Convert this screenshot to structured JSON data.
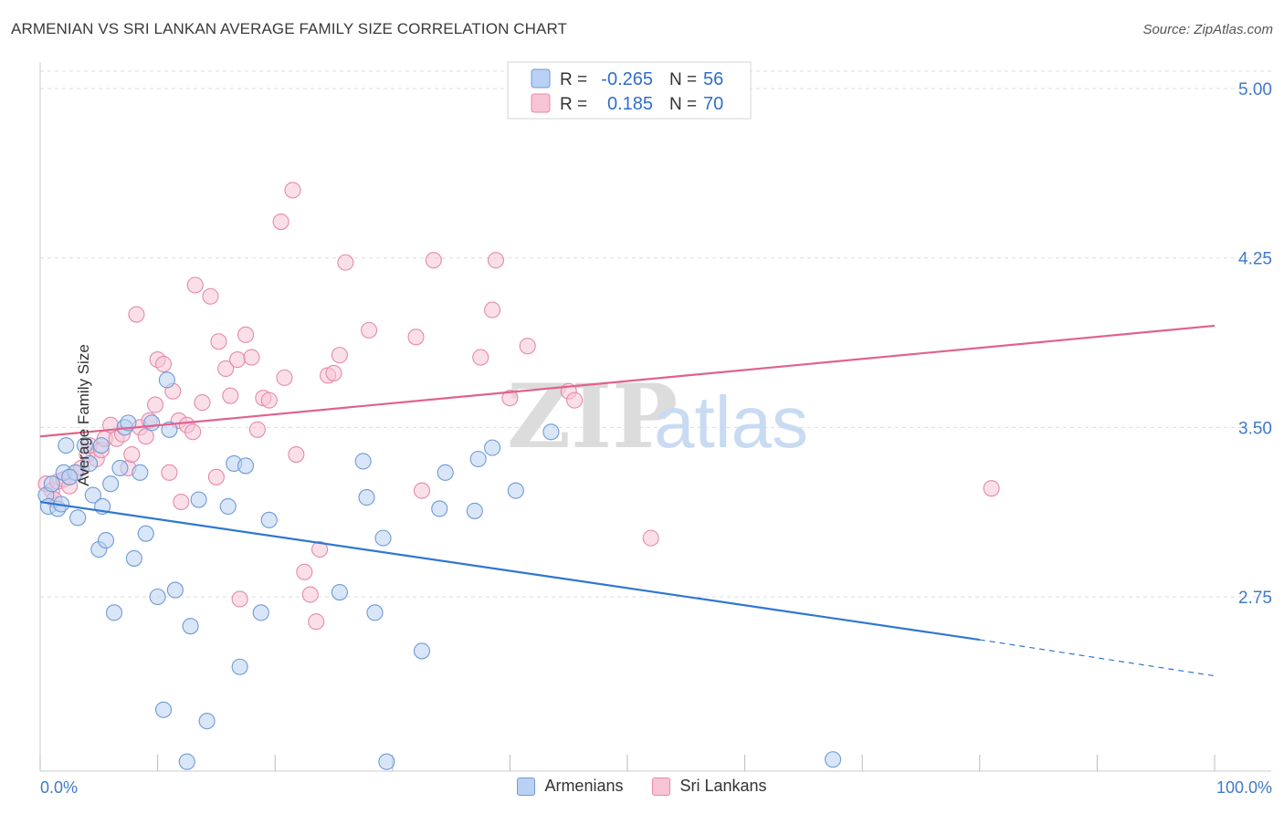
{
  "title": "ARMENIAN VS SRI LANKAN AVERAGE FAMILY SIZE CORRELATION CHART",
  "source": "Source: ZipAtlas.com",
  "watermark": "ZIPatlas",
  "colors": {
    "blue_fill": "#b9d1f3",
    "blue_stroke": "#6f9ad6",
    "blue_line": "#2f77d0",
    "pink_fill": "#f7c4d5",
    "pink_stroke": "#e58aa8",
    "pink_line": "#e0628c",
    "tick_label": "#3f7ac9",
    "grid": "#dddddd"
  },
  "legend": {
    "rows": [
      {
        "r_label": "R =",
        "r_value": "-0.265",
        "n_label": "N =",
        "n_value": "56"
      },
      {
        "r_label": "R =",
        "r_value": "0.185",
        "n_label": "N =",
        "n_value": "70"
      }
    ]
  },
  "bottom_legend": {
    "armenians": "Armenians",
    "sri_lankans": "Sri Lankans"
  },
  "chart_data": {
    "type": "scatter",
    "title": "ARMENIAN VS SRI LANKAN AVERAGE FAMILY SIZE CORRELATION CHART",
    "xlabel": "",
    "ylabel": "Average Family Size",
    "xlim": [
      0,
      100
    ],
    "ylim": [
      2.0,
      5.1
    ],
    "x_tick_labels": [
      "0.0%",
      "100.0%"
    ],
    "y_ticks": [
      2.75,
      3.5,
      4.25,
      5.0
    ],
    "y_tick_labels": [
      "2.75",
      "3.50",
      "4.25",
      "5.00"
    ],
    "grid": true,
    "legend_placement": "top-center",
    "series": [
      {
        "name": "Armenians",
        "color": "#6f9ad6",
        "R": -0.265,
        "N": 56,
        "trend": {
          "x0": 0,
          "y0": 3.17,
          "x1": 80,
          "y1": 2.56,
          "dashed_to_x": 100,
          "dashed_to_y": 2.4
        },
        "points": [
          [
            0.5,
            3.2
          ],
          [
            1,
            3.25
          ],
          [
            0.7,
            3.15
          ],
          [
            1.5,
            3.14
          ],
          [
            2,
            3.3
          ],
          [
            2.2,
            3.42
          ],
          [
            1.8,
            3.16
          ],
          [
            3,
            3.3
          ],
          [
            3.2,
            3.1
          ],
          [
            3.8,
            3.42
          ],
          [
            4.2,
            3.34
          ],
          [
            4.5,
            3.2
          ],
          [
            5,
            2.96
          ],
          [
            5.3,
            3.15
          ],
          [
            5.6,
            3
          ],
          [
            6,
            3.25
          ],
          [
            6.3,
            2.68
          ],
          [
            6.8,
            3.32
          ],
          [
            7.2,
            3.5
          ],
          [
            7.5,
            3.52
          ],
          [
            8,
            2.92
          ],
          [
            8.5,
            3.3
          ],
          [
            9,
            3.03
          ],
          [
            9.5,
            3.52
          ],
          [
            10,
            2.75
          ],
          [
            10.5,
            2.25
          ],
          [
            10.8,
            3.71
          ],
          [
            11,
            3.49
          ],
          [
            11.5,
            2.78
          ],
          [
            12.8,
            2.62
          ],
          [
            13.5,
            3.18
          ],
          [
            14.2,
            2.2
          ],
          [
            16,
            3.15
          ],
          [
            16.5,
            3.34
          ],
          [
            17,
            2.44
          ],
          [
            17.5,
            3.33
          ],
          [
            18.8,
            2.68
          ],
          [
            19.5,
            3.09
          ],
          [
            25.5,
            2.77
          ],
          [
            27.5,
            3.35
          ],
          [
            27.8,
            3.19
          ],
          [
            28.5,
            2.68
          ],
          [
            29.2,
            3.01
          ],
          [
            29.5,
            2.02
          ],
          [
            32.5,
            2.51
          ],
          [
            34,
            3.14
          ],
          [
            34.5,
            3.3
          ],
          [
            37,
            3.13
          ],
          [
            37.3,
            3.36
          ],
          [
            38.5,
            3.41
          ],
          [
            40.5,
            3.22
          ],
          [
            43.5,
            3.48
          ],
          [
            12.5,
            2.02
          ],
          [
            67.5,
            2.03
          ],
          [
            5.2,
            3.42
          ],
          [
            2.5,
            3.28
          ]
        ]
      },
      {
        "name": "Sri Lankans",
        "color": "#e58aa8",
        "R": 0.185,
        "N": 70,
        "trend": {
          "x0": 0,
          "y0": 3.46,
          "x1": 100,
          "y1": 3.95
        },
        "points": [
          [
            0.5,
            3.25
          ],
          [
            1,
            3.22
          ],
          [
            1.5,
            3.26
          ],
          [
            1.2,
            3.18
          ],
          [
            2,
            3.27
          ],
          [
            2.5,
            3.24
          ],
          [
            3,
            3.3
          ],
          [
            3.5,
            3.32
          ],
          [
            4,
            3.38
          ],
          [
            4.2,
            3.42
          ],
          [
            4.8,
            3.36
          ],
          [
            5.2,
            3.4
          ],
          [
            5.5,
            3.45
          ],
          [
            6,
            3.51
          ],
          [
            6.5,
            3.45
          ],
          [
            7,
            3.47
          ],
          [
            7.5,
            3.32
          ],
          [
            7.8,
            3.38
          ],
          [
            8.2,
            4
          ],
          [
            8.5,
            3.5
          ],
          [
            9,
            3.46
          ],
          [
            9.3,
            3.53
          ],
          [
            9.8,
            3.6
          ],
          [
            10,
            3.8
          ],
          [
            10.5,
            3.78
          ],
          [
            11,
            3.3
          ],
          [
            11.3,
            3.66
          ],
          [
            11.8,
            3.53
          ],
          [
            12,
            3.17
          ],
          [
            12.5,
            3.51
          ],
          [
            13,
            3.48
          ],
          [
            13.2,
            4.13
          ],
          [
            13.8,
            3.61
          ],
          [
            14.5,
            4.08
          ],
          [
            15,
            3.28
          ],
          [
            15.2,
            3.88
          ],
          [
            15.8,
            3.76
          ],
          [
            16.2,
            3.64
          ],
          [
            16.8,
            3.8
          ],
          [
            17.5,
            3.91
          ],
          [
            18,
            3.81
          ],
          [
            18.5,
            3.49
          ],
          [
            19,
            3.63
          ],
          [
            19.5,
            3.62
          ],
          [
            20.5,
            4.41
          ],
          [
            20.8,
            3.72
          ],
          [
            21.5,
            4.55
          ],
          [
            21.8,
            3.38
          ],
          [
            22.5,
            2.86
          ],
          [
            23,
            2.76
          ],
          [
            23.5,
            2.64
          ],
          [
            23.8,
            2.96
          ],
          [
            24.5,
            3.73
          ],
          [
            25,
            3.74
          ],
          [
            25.5,
            3.82
          ],
          [
            26,
            4.23
          ],
          [
            28,
            3.93
          ],
          [
            32,
            3.9
          ],
          [
            32.5,
            3.22
          ],
          [
            33.5,
            4.24
          ],
          [
            37.5,
            3.81
          ],
          [
            38.5,
            4.02
          ],
          [
            38.8,
            4.24
          ],
          [
            40,
            3.63
          ],
          [
            41.5,
            3.86
          ],
          [
            45,
            3.66
          ],
          [
            45.5,
            3.62
          ],
          [
            52,
            3.01
          ],
          [
            81,
            3.23
          ],
          [
            17,
            2.74
          ]
        ]
      }
    ]
  }
}
